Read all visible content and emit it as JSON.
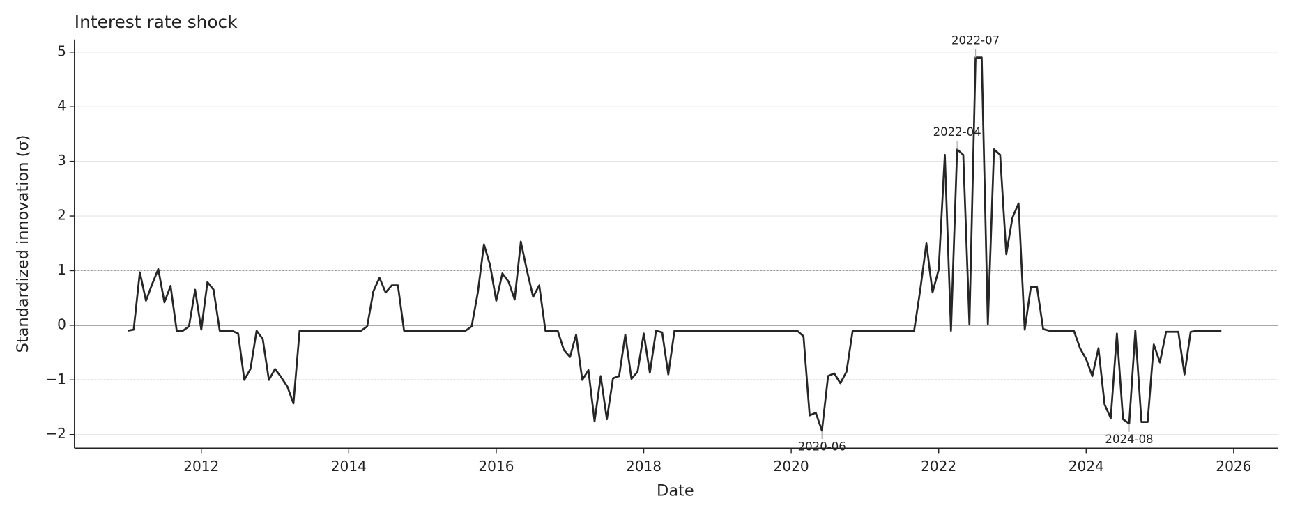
{
  "chart_data": {
    "type": "line",
    "title": "Interest rate shock",
    "x_label": "Date",
    "y_label": "Standardized innovation (σ)",
    "xlim": [
      2010.28,
      2026.6
    ],
    "ylim": [
      -2.25,
      5.23
    ],
    "xticks": [
      2012,
      2014,
      2016,
      2018,
      2020,
      2022,
      2024,
      2026
    ],
    "yticks": [
      {
        "value": -2,
        "label": "−2"
      },
      {
        "value": -1,
        "label": "−1"
      },
      0,
      1,
      2,
      3,
      4,
      5
    ],
    "grid": true,
    "reference_lines": [
      {
        "value": 0,
        "style": "solid"
      },
      {
        "value": 1,
        "style": "dotted"
      },
      {
        "value": -1,
        "style": "dotted"
      }
    ],
    "series": [
      {
        "name": "Interest rate shock",
        "color": "#262626",
        "x": [
          2011.0,
          2011.0833,
          2011.1667,
          2011.25,
          2011.3333,
          2011.4167,
          2011.5,
          2011.5833,
          2011.6667,
          2011.75,
          2011.8333,
          2011.9167,
          2012.0,
          2012.0833,
          2012.1667,
          2012.25,
          2012.3333,
          2012.4167,
          2012.5,
          2012.5833,
          2012.6667,
          2012.75,
          2012.8333,
          2012.9167,
          2013.0,
          2013.0833,
          2013.1667,
          2013.25,
          2013.3333,
          2013.4167,
          2013.5,
          2013.5833,
          2013.6667,
          2013.75,
          2013.8333,
          2013.9167,
          2014.0,
          2014.0833,
          2014.1667,
          2014.25,
          2014.3333,
          2014.4167,
          2014.5,
          2014.5833,
          2014.6667,
          2014.75,
          2014.8333,
          2014.9167,
          2015.0,
          2015.0833,
          2015.1667,
          2015.25,
          2015.3333,
          2015.4167,
          2015.5,
          2015.5833,
          2015.6667,
          2015.75,
          2015.8333,
          2015.9167,
          2016.0,
          2016.0833,
          2016.1667,
          2016.25,
          2016.3333,
          2016.4167,
          2016.5,
          2016.5833,
          2016.6667,
          2016.75,
          2016.8333,
          2016.9167,
          2017.0,
          2017.0833,
          2017.1667,
          2017.25,
          2017.3333,
          2017.4167,
          2017.5,
          2017.5833,
          2017.6667,
          2017.75,
          2017.8333,
          2017.9167,
          2018.0,
          2018.0833,
          2018.1667,
          2018.25,
          2018.3333,
          2018.4167,
          2018.5,
          2018.5833,
          2018.6667,
          2018.75,
          2018.8333,
          2018.9167,
          2019.0,
          2019.0833,
          2019.1667,
          2019.25,
          2019.3333,
          2019.4167,
          2019.5,
          2019.5833,
          2019.6667,
          2019.75,
          2019.8333,
          2019.9167,
          2020.0,
          2020.0833,
          2020.1667,
          2020.25,
          2020.3333,
          2020.4167,
          2020.5,
          2020.5833,
          2020.6667,
          2020.75,
          2020.8333,
          2020.9167,
          2021.0,
          2021.0833,
          2021.1667,
          2021.25,
          2021.3333,
          2021.4167,
          2021.5,
          2021.5833,
          2021.6667,
          2021.75,
          2021.8333,
          2021.9167,
          2022.0,
          2022.0833,
          2022.1667,
          2022.25,
          2022.3333,
          2022.4167,
          2022.5,
          2022.5833,
          2022.6667,
          2022.75,
          2022.8333,
          2022.9167,
          2023.0,
          2023.0833,
          2023.1667,
          2023.25,
          2023.3333,
          2023.4167,
          2023.5,
          2023.5833,
          2023.6667,
          2023.75,
          2023.8333,
          2023.9167,
          2024.0,
          2024.0833,
          2024.1667,
          2024.25,
          2024.3333,
          2024.4167,
          2024.5,
          2024.5833,
          2024.6667,
          2024.75,
          2024.8333,
          2024.9167,
          2025.0,
          2025.0833,
          2025.1667,
          2025.25,
          2025.3333,
          2025.4167,
          2025.5,
          2025.5833,
          2025.6667,
          2025.75,
          2025.8333
        ],
        "values": [
          -0.1,
          -0.08,
          0.97,
          0.45,
          0.75,
          1.03,
          0.42,
          0.72,
          -0.1,
          -0.1,
          -0.02,
          0.65,
          -0.08,
          0.79,
          0.65,
          -0.1,
          -0.1,
          -0.1,
          -0.15,
          -1.0,
          -0.8,
          -0.1,
          -0.25,
          -1.0,
          -0.8,
          -0.95,
          -1.12,
          -1.43,
          -0.1,
          -0.1,
          -0.1,
          -0.1,
          -0.1,
          -0.1,
          -0.1,
          -0.1,
          -0.1,
          -0.1,
          -0.1,
          -0.02,
          0.62,
          0.87,
          0.6,
          0.73,
          0.73,
          -0.1,
          -0.1,
          -0.1,
          -0.1,
          -0.1,
          -0.1,
          -0.1,
          -0.1,
          -0.1,
          -0.1,
          -0.1,
          -0.02,
          0.6,
          1.48,
          1.1,
          0.45,
          0.95,
          0.8,
          0.47,
          1.53,
          1.0,
          0.52,
          0.73,
          -0.1,
          -0.1,
          -0.1,
          -0.45,
          -0.58,
          -0.17,
          -1.0,
          -0.82,
          -1.76,
          -0.93,
          -1.72,
          -0.97,
          -0.93,
          -0.17,
          -0.98,
          -0.85,
          -0.15,
          -0.87,
          -0.1,
          -0.13,
          -0.9,
          -0.1,
          -0.1,
          -0.1,
          -0.1,
          -0.1,
          -0.1,
          -0.1,
          -0.1,
          -0.1,
          -0.1,
          -0.1,
          -0.1,
          -0.1,
          -0.1,
          -0.1,
          -0.1,
          -0.1,
          -0.1,
          -0.1,
          -0.1,
          -0.1,
          -0.2,
          -1.65,
          -1.6,
          -1.93,
          -0.93,
          -0.88,
          -1.06,
          -0.85,
          -0.1,
          -0.1,
          -0.1,
          -0.1,
          -0.1,
          -0.1,
          -0.1,
          -0.1,
          -0.1,
          -0.1,
          -0.1,
          0.65,
          1.5,
          0.6,
          1.02,
          3.12,
          -0.1,
          3.22,
          3.12,
          0.02,
          4.9,
          4.9,
          0.02,
          3.22,
          3.12,
          1.3,
          1.97,
          2.23,
          -0.08,
          0.7,
          0.7,
          -0.07,
          -0.1,
          -0.1,
          -0.1,
          -0.1,
          -0.1,
          -0.42,
          -0.62,
          -0.93,
          -0.42,
          -1.45,
          -1.7,
          -0.15,
          -1.72,
          -1.8,
          -0.1,
          -1.77,
          -1.77,
          -0.35,
          -0.68,
          -0.12,
          -0.12,
          -0.12,
          -0.9,
          -0.12,
          -0.1,
          -0.1,
          -0.1,
          -0.1,
          -0.1
        ]
      }
    ],
    "annotations": [
      {
        "text": "2022-07",
        "x": 2022.5,
        "y": 4.9
      },
      {
        "text": "2022-04",
        "x": 2022.25,
        "y": 3.22
      },
      {
        "text": "2020-06",
        "x": 2020.4167,
        "y": -1.93
      },
      {
        "text": "2024-08",
        "x": 2024.5833,
        "y": -1.8
      }
    ]
  }
}
